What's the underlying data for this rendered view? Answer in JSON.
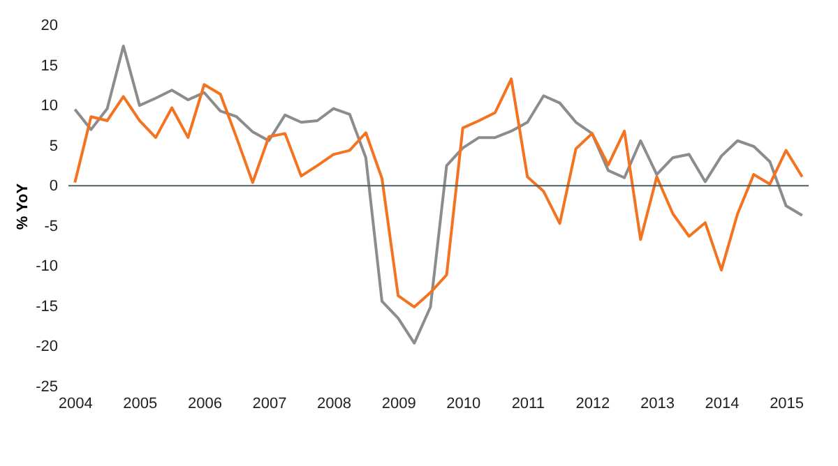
{
  "chart_data": {
    "type": "line",
    "ylabel": "% YoY",
    "x": [
      2004,
      2004.25,
      2004.5,
      2004.75,
      2005,
      2005.25,
      2005.5,
      2005.75,
      2006,
      2006.25,
      2006.5,
      2006.75,
      2007,
      2007.25,
      2007.5,
      2007.75,
      2008,
      2008.25,
      2008.5,
      2008.75,
      2009,
      2009.25,
      2009.5,
      2009.75,
      2010,
      2010.25,
      2010.5,
      2010.75,
      2011,
      2011.25,
      2011.5,
      2011.75,
      2012,
      2012.25,
      2012.5,
      2012.75,
      2013,
      2013.25,
      2013.5,
      2013.75,
      2014,
      2014.25,
      2014.5,
      2014.75,
      2015,
      2015.25
    ],
    "series": [
      {
        "color": "#8c8c8c",
        "values": [
          9.5,
          7.0,
          9.6,
          17.4,
          10.0,
          10.9,
          11.9,
          10.7,
          11.6,
          9.3,
          8.6,
          6.7,
          5.6,
          8.8,
          7.9,
          8.1,
          9.6,
          8.9,
          3.5,
          -14.4,
          -16.5,
          -19.6,
          -15.1,
          2.5,
          4.7,
          6.0,
          6.0,
          6.8,
          7.9,
          11.2,
          10.3,
          7.9,
          6.5,
          1.9,
          1.0,
          5.6,
          1.4,
          3.5,
          3.9,
          0.5,
          3.7,
          5.6,
          4.9,
          3.0,
          -2.5,
          -3.7
        ]
      },
      {
        "color": "#f47320",
        "values": [
          0.4,
          8.6,
          8.1,
          11.1,
          8.1,
          6.0,
          9.7,
          6.0,
          12.6,
          11.4,
          6.0,
          0.4,
          6.1,
          6.5,
          1.2,
          2.5,
          3.9,
          4.4,
          6.6,
          0.9,
          -13.7,
          -15.1,
          -13.3,
          -11.1,
          7.2,
          8.1,
          9.1,
          13.3,
          1.1,
          -0.7,
          -4.7,
          4.6,
          6.5,
          2.6,
          6.8,
          -6.7,
          1.1,
          -3.5,
          -6.3,
          -4.6,
          -10.5,
          -3.5,
          1.4,
          0.2,
          4.4,
          1.1
        ]
      }
    ],
    "xlim": [
      2003.9,
      2015.35
    ],
    "xticks": [
      2004,
      2005,
      2006,
      2007,
      2008,
      2009,
      2010,
      2011,
      2012,
      2013,
      2014,
      2015
    ],
    "ylim": [
      -25,
      20
    ],
    "yticks": [
      -25,
      -20,
      -15,
      -10,
      -5,
      0,
      5,
      10,
      15,
      20
    ],
    "ref_lines": [
      {
        "axis": "y",
        "value": 0,
        "color": "#4d6060"
      }
    ],
    "grid": false,
    "legend": false
  }
}
